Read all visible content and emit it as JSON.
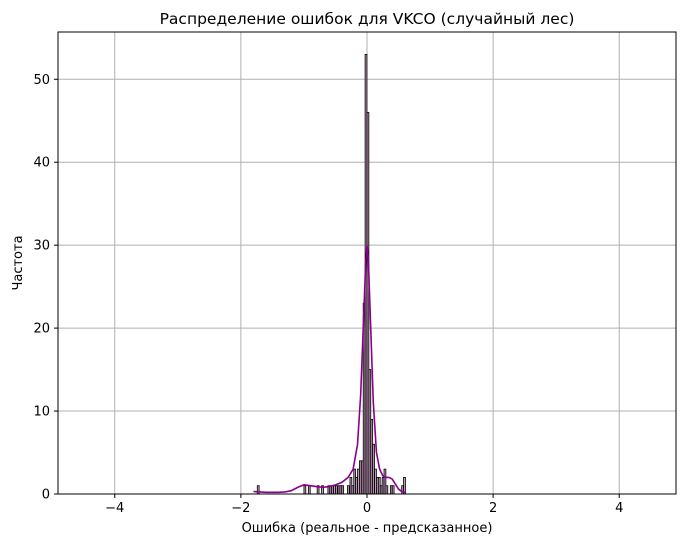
{
  "chart_data": {
    "type": "bar",
    "title": "Распределение ошибок для VKCO (случайный лес)",
    "xlabel": "Ошибка (реальное - предсказанное)",
    "ylabel": "Частота",
    "xlim": [
      -4.9,
      4.9
    ],
    "ylim": [
      0,
      55.7
    ],
    "xticks": [
      -4,
      -2,
      0,
      2,
      4
    ],
    "yticks": [
      0,
      10,
      20,
      30,
      40,
      50
    ],
    "grid": true,
    "bin_width": 0.0294,
    "bins": [
      {
        "x": -1.74,
        "count": 1
      },
      {
        "x": -1.0,
        "count": 1
      },
      {
        "x": -0.93,
        "count": 1
      },
      {
        "x": -0.79,
        "count": 1
      },
      {
        "x": -0.72,
        "count": 1
      },
      {
        "x": -0.62,
        "count": 1
      },
      {
        "x": -0.59,
        "count": 1
      },
      {
        "x": -0.56,
        "count": 1
      },
      {
        "x": -0.53,
        "count": 1
      },
      {
        "x": -0.5,
        "count": 1
      },
      {
        "x": -0.46,
        "count": 1
      },
      {
        "x": -0.43,
        "count": 1
      },
      {
        "x": -0.4,
        "count": 1
      },
      {
        "x": -0.31,
        "count": 1
      },
      {
        "x": -0.27,
        "count": 2
      },
      {
        "x": -0.24,
        "count": 1
      },
      {
        "x": -0.21,
        "count": 3
      },
      {
        "x": -0.18,
        "count": 2
      },
      {
        "x": -0.15,
        "count": 3
      },
      {
        "x": -0.12,
        "count": 4
      },
      {
        "x": -0.09,
        "count": 4
      },
      {
        "x": -0.06,
        "count": 23
      },
      {
        "x": -0.03,
        "count": 53
      },
      {
        "x": 0.0,
        "count": 46
      },
      {
        "x": 0.03,
        "count": 15
      },
      {
        "x": 0.06,
        "count": 9
      },
      {
        "x": 0.09,
        "count": 6
      },
      {
        "x": 0.12,
        "count": 3
      },
      {
        "x": 0.15,
        "count": 2
      },
      {
        "x": 0.18,
        "count": 2
      },
      {
        "x": 0.21,
        "count": 1
      },
      {
        "x": 0.24,
        "count": 2
      },
      {
        "x": 0.27,
        "count": 3
      },
      {
        "x": 0.3,
        "count": 1
      },
      {
        "x": 0.37,
        "count": 1
      },
      {
        "x": 0.4,
        "count": 1
      },
      {
        "x": 0.55,
        "count": 1
      },
      {
        "x": 0.58,
        "count": 2
      }
    ],
    "kde": {
      "x": [
        -1.8,
        -1.7,
        -1.6,
        -1.5,
        -1.4,
        -1.3,
        -1.2,
        -1.1,
        -1.0,
        -0.9,
        -0.8,
        -0.7,
        -0.6,
        -0.5,
        -0.4,
        -0.3,
        -0.22,
        -0.15,
        -0.1,
        -0.05,
        -0.02,
        0.0,
        0.02,
        0.05,
        0.1,
        0.15,
        0.2,
        0.25,
        0.3,
        0.35,
        0.4,
        0.45,
        0.5,
        0.55,
        0.62
      ],
      "y": [
        0.3,
        0.25,
        0.2,
        0.2,
        0.2,
        0.25,
        0.4,
        0.8,
        1.1,
        1.0,
        0.9,
        0.8,
        0.9,
        1.1,
        1.4,
        2.0,
        3.0,
        6.0,
        12.0,
        22.0,
        28.0,
        30.0,
        28.5,
        22.0,
        11.0,
        5.0,
        3.0,
        2.2,
        2.0,
        2.0,
        1.8,
        1.2,
        0.6,
        0.3,
        0.15
      ]
    },
    "colors": {
      "bar_fill": "#c098b8",
      "bar_edge": "#000000",
      "kde_line": "#8b008b",
      "grid": "#b0b0b0"
    }
  }
}
